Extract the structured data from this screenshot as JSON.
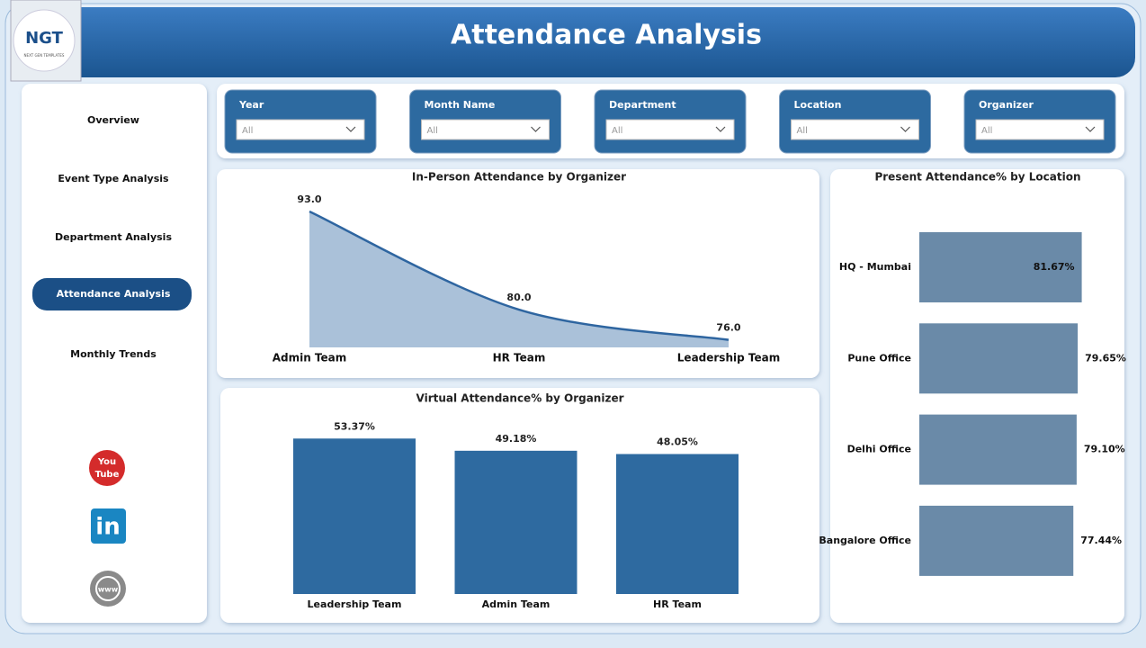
{
  "header": {
    "title": "Attendance Analysis",
    "logo": "NGT",
    "logo_tagline": "NEXT GEN TEMPLATES"
  },
  "nav": {
    "items": [
      "Overview",
      "Event Type Analysis",
      "Department Analysis",
      "Attendance Analysis",
      "Monthly Trends"
    ],
    "active": 3
  },
  "social": {
    "youtube": [
      "You",
      "Tube"
    ],
    "linkedin": "in",
    "web": "www"
  },
  "filters": [
    {
      "label": "Year",
      "value": "All"
    },
    {
      "label": "Month Name",
      "value": "All"
    },
    {
      "label": "Department",
      "value": "All"
    },
    {
      "label": "Location",
      "value": "All"
    },
    {
      "label": "Organizer",
      "value": "All"
    }
  ],
  "chart_data": [
    {
      "type": "area",
      "title": "In-Person Attendance by Organizer",
      "categories": [
        "Admin Team",
        "HR Team",
        "Leadership Team"
      ],
      "values": [
        93,
        80,
        76
      ],
      "value_labels": [
        "93.0",
        "80.0",
        "76.0"
      ],
      "ylim": [
        75,
        93
      ],
      "color": "#2e65a0",
      "fill": "#aac1d9"
    },
    {
      "type": "bar",
      "title": "Virtual Attendance% by Organizer",
      "categories": [
        "Leadership Team",
        "Admin Team",
        "HR Team"
      ],
      "values": [
        53.37,
        49.18,
        48.05
      ],
      "value_labels": [
        "53.37%",
        "49.18%",
        "48.05%"
      ],
      "ylim": [
        0,
        55
      ],
      "color": "#2e6aa0"
    },
    {
      "type": "hbar",
      "title": "Present Attendance% by Location",
      "categories": [
        "HQ - Mumbai",
        "Pune Office",
        "Delhi Office",
        "Bangalore Office"
      ],
      "values": [
        81.67,
        79.65,
        79.1,
        77.44
      ],
      "value_labels": [
        "81.67%",
        "79.65%",
        "79.10%",
        "77.44%"
      ],
      "xlim": [
        0,
        90
      ],
      "color": "#6a8aa8"
    }
  ]
}
